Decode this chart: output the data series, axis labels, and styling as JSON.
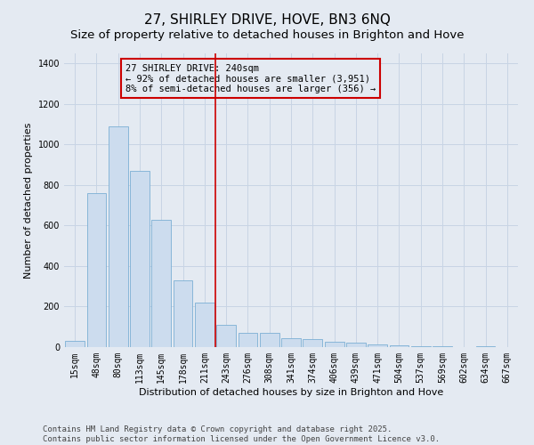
{
  "title": "27, SHIRLEY DRIVE, HOVE, BN3 6NQ",
  "subtitle": "Size of property relative to detached houses in Brighton and Hove",
  "xlabel": "Distribution of detached houses by size in Brighton and Hove",
  "ylabel": "Number of detached properties",
  "categories": [
    "15sqm",
    "48sqm",
    "80sqm",
    "113sqm",
    "145sqm",
    "178sqm",
    "211sqm",
    "243sqm",
    "276sqm",
    "308sqm",
    "341sqm",
    "374sqm",
    "406sqm",
    "439sqm",
    "471sqm",
    "504sqm",
    "537sqm",
    "569sqm",
    "602sqm",
    "634sqm",
    "667sqm"
  ],
  "values": [
    30,
    760,
    1090,
    870,
    630,
    330,
    220,
    110,
    70,
    70,
    45,
    40,
    25,
    20,
    15,
    10,
    5,
    3,
    1,
    5,
    1
  ],
  "bar_color": "#ccdcee",
  "bar_edge_color": "#7bafd4",
  "grid_color": "#c8d4e4",
  "background_color": "#e4eaf2",
  "vline_color": "#cc0000",
  "annotation_text": "27 SHIRLEY DRIVE: 240sqm\n← 92% of detached houses are smaller (3,951)\n8% of semi-detached houses are larger (356) →",
  "annotation_box_color": "#cc0000",
  "footer_line1": "Contains HM Land Registry data © Crown copyright and database right 2025.",
  "footer_line2": "Contains public sector information licensed under the Open Government Licence v3.0.",
  "ylim": [
    0,
    1450
  ],
  "yticks": [
    0,
    200,
    400,
    600,
    800,
    1000,
    1200,
    1400
  ],
  "title_fontsize": 11,
  "subtitle_fontsize": 9.5,
  "label_fontsize": 8,
  "tick_fontsize": 7,
  "footer_fontsize": 6.5,
  "annot_fontsize": 7.5
}
